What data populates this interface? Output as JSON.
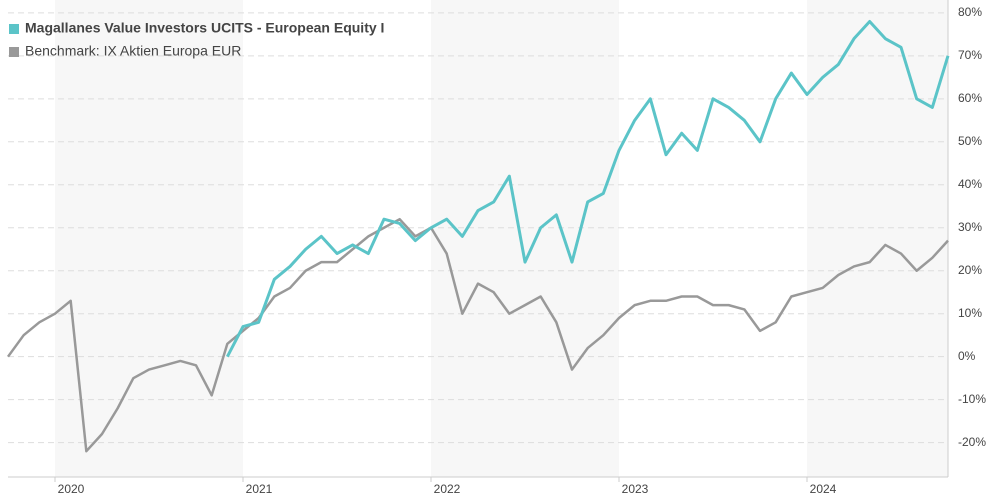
{
  "chart_data": {
    "type": "line",
    "categories": [
      null,
      null,
      null,
      "2020",
      null,
      null,
      null,
      null,
      null,
      null,
      null,
      null,
      null,
      null,
      null,
      "2021",
      null,
      null,
      null,
      null,
      null,
      null,
      null,
      null,
      null,
      null,
      null,
      "2022",
      null,
      null,
      null,
      null,
      null,
      null,
      null,
      null,
      null,
      null,
      null,
      "2023",
      null,
      null,
      null,
      null,
      null,
      null,
      null,
      null,
      null,
      null,
      null,
      "2024",
      null,
      null,
      null,
      null,
      null,
      null,
      null,
      null,
      null
    ],
    "series": [
      {
        "name": "Magallanes Value Investors UCITS - European Equity I",
        "color": "#5bc4c8",
        "values": [
          null,
          null,
          null,
          null,
          null,
          null,
          null,
          null,
          null,
          null,
          null,
          null,
          null,
          null,
          0,
          7,
          8,
          18,
          21,
          25,
          28,
          24,
          26,
          24,
          32,
          31,
          27,
          30,
          32,
          28,
          34,
          36,
          42,
          22,
          30,
          33,
          22,
          36,
          38,
          48,
          55,
          60,
          47,
          52,
          48,
          60,
          58,
          55,
          50,
          60,
          66,
          61,
          65,
          68,
          74,
          78,
          74,
          72,
          60,
          58,
          70
        ]
      },
      {
        "name": "Benchmark: IX Aktien Europa EUR",
        "color": "#999999",
        "values": [
          0,
          5,
          8,
          10,
          13,
          -22,
          -18,
          -12,
          -5,
          -3,
          -2,
          -1,
          -2,
          -9,
          3,
          6,
          9,
          14,
          16,
          20,
          22,
          22,
          25,
          28,
          30,
          32,
          28,
          30,
          24,
          10,
          17,
          15,
          10,
          12,
          14,
          8,
          -3,
          2,
          5,
          9,
          12,
          13,
          13,
          14,
          14,
          12,
          12,
          11,
          6,
          8,
          14,
          15,
          16,
          19,
          21,
          22,
          26,
          24,
          20,
          23,
          27
        ]
      }
    ],
    "ylim": [
      -28,
      83
    ],
    "yticks": [
      {
        "value": -20,
        "label": "-20%"
      },
      {
        "value": -10,
        "label": "-10%"
      },
      {
        "value": 0,
        "label": "0%"
      },
      {
        "value": 10,
        "label": "10%"
      },
      {
        "value": 20,
        "label": "20%"
      },
      {
        "value": 30,
        "label": "30%"
      },
      {
        "value": 40,
        "label": "40%"
      },
      {
        "value": 50,
        "label": "50%"
      },
      {
        "value": 60,
        "label": "60%"
      },
      {
        "value": 70,
        "label": "70%"
      },
      {
        "value": 80,
        "label": "80%"
      }
    ],
    "grid": true
  }
}
